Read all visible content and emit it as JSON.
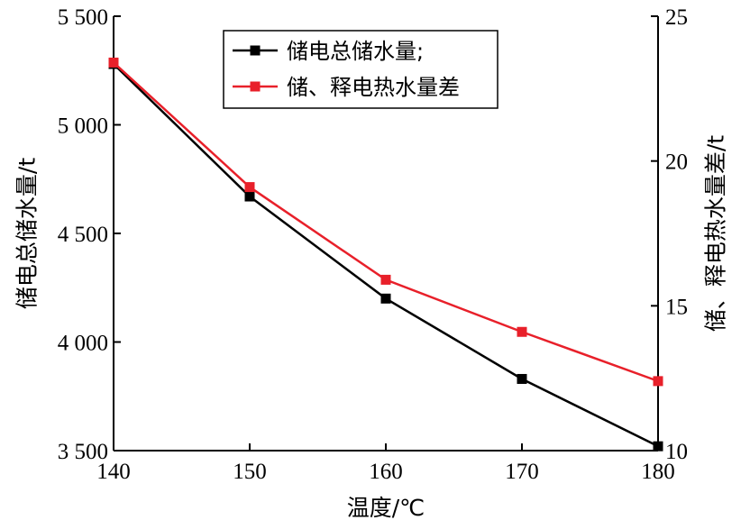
{
  "chart_data": {
    "type": "line",
    "x": [
      140,
      150,
      160,
      170,
      180
    ],
    "xlabel": "温度/℃",
    "xlim": [
      140,
      180
    ],
    "xticks": [
      140,
      150,
      160,
      170,
      180
    ],
    "xtick_labels": [
      "140",
      "150",
      "160",
      "170",
      "180"
    ],
    "ylabel_left": "储电总储水量/t",
    "ylim_left": [
      3500,
      5500
    ],
    "yticks_left": [
      3500,
      4000,
      4500,
      5000,
      5500
    ],
    "ytick_labels_left": [
      "3 500",
      "4 000",
      "4 500",
      "5 000",
      "5 500"
    ],
    "ylabel_right": "储、释电热水量差/t",
    "ylim_right": [
      10,
      25
    ],
    "yticks_right": [
      10,
      15,
      20,
      25
    ],
    "ytick_labels_right": [
      "10",
      "15",
      "20",
      "25"
    ],
    "grid": false,
    "legend_position": "top-center",
    "series": [
      {
        "name": "储电总储水量;",
        "axis": "left",
        "color": "#000000",
        "marker": "square",
        "values": [
          5280,
          4670,
          4200,
          3830,
          3520
        ]
      },
      {
        "name": "储、释电热水量差",
        "axis": "right",
        "color": "#e8202a",
        "marker": "square",
        "values": [
          23.4,
          19.1,
          15.9,
          14.1,
          12.4
        ]
      }
    ]
  }
}
